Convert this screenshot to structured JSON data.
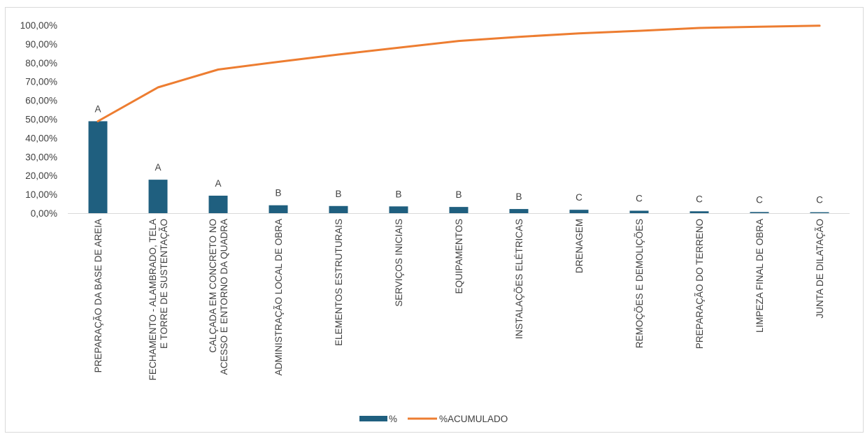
{
  "chart_data": {
    "type": "bar",
    "categories": [
      "PREPARAÇÃO DA BASE DE AREIA",
      "FECHAMENTO - ALAMBRADO, TELA E TORRE DE SUSTENTAÇÃO",
      "CALÇADA EM CONCRETO NO ACESSO E ENTORNO DA QUADRA",
      "ADMINISTRAÇÃO LOCAL DE OBRA",
      "ELEMENTOS ESTRUTURAIS",
      "SERVIÇOS INICIAIS",
      "EQUIPAMENTOS",
      "INSTALAÇÕES ELÉTRICAS",
      "DRENAGEM",
      "REMOÇÕES E DEMOLIÇÕES",
      "PREPARAÇÃO DO TERRENO",
      "LIMPEZA FINAL DE OBRA",
      "JUNTA DE DILATAÇÃO"
    ],
    "category_lines": [
      [
        "PREPARAÇÃO DA BASE DE AREIA"
      ],
      [
        "FECHAMENTO - ALAMBRADO, TELA",
        "E TORRE DE SUSTENTAÇÃO"
      ],
      [
        "CALÇADA EM CONCRETO NO",
        "ACESSO E ENTORNO DA QUADRA"
      ],
      [
        "ADMINISTRAÇÃO LOCAL DE OBRA"
      ],
      [
        "ELEMENTOS ESTRUTURAIS"
      ],
      [
        "SERVIÇOS INICIAIS"
      ],
      [
        "EQUIPAMENTOS"
      ],
      [
        "INSTALAÇÕES ELÉTRICAS"
      ],
      [
        "DRENAGEM"
      ],
      [
        "REMOÇÕES E DEMOLIÇÕES"
      ],
      [
        "PREPARAÇÃO DO TERRENO"
      ],
      [
        "LIMPEZA FINAL DE OBRA"
      ],
      [
        "JUNTA DE DILATAÇÃO"
      ]
    ],
    "series": [
      {
        "name": "%",
        "type": "bar",
        "color": "#1f5f7f",
        "values": [
          48.9,
          17.8,
          9.3,
          4.2,
          3.8,
          3.6,
          3.3,
          2.2,
          1.8,
          1.3,
          1.0,
          0.6,
          0.5
        ],
        "labels": [
          "A",
          "A",
          "A",
          "B",
          "B",
          "B",
          "B",
          "B",
          "C",
          "C",
          "C",
          "C",
          "C"
        ]
      },
      {
        "name": "%ACUMULADO",
        "type": "line",
        "color": "#ed7d31",
        "values": [
          48.9,
          66.9,
          76.4,
          80.5,
          84.4,
          88.0,
          91.6,
          93.8,
          95.6,
          97.0,
          98.5,
          99.2,
          99.7
        ]
      }
    ],
    "yticks": [
      "0,00%",
      "10,00%",
      "20,00%",
      "30,00%",
      "40,00%",
      "50,00%",
      "60,00%",
      "70,00%",
      "80,00%",
      "90,00%",
      "100,00%"
    ],
    "ylim": [
      0,
      100
    ],
    "grid": false,
    "legend": "bottom"
  }
}
